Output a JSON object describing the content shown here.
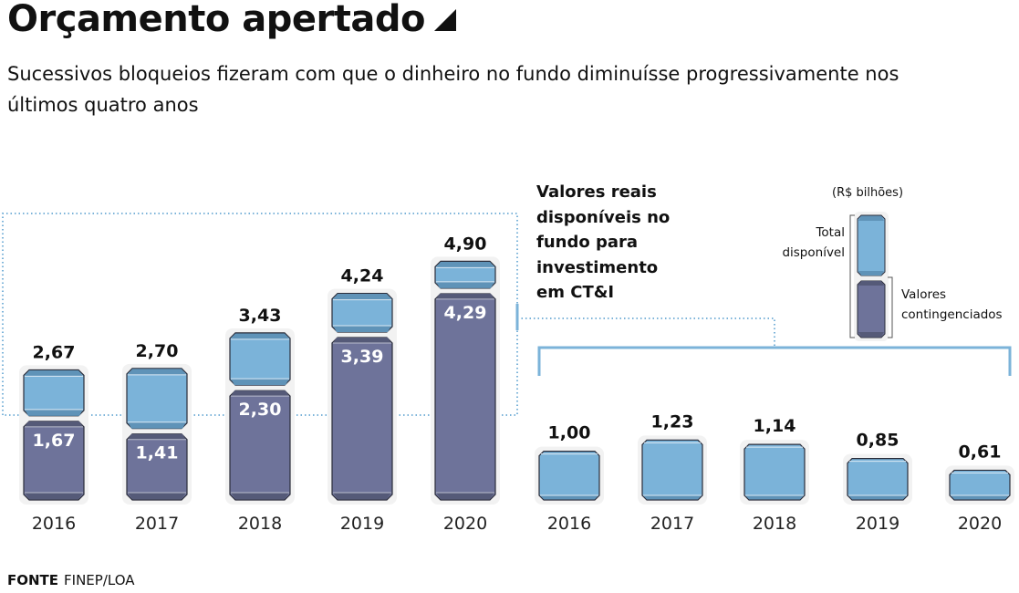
{
  "header": {
    "title": "Orçamento apertado",
    "subtitle": "Sucessivos bloqueios fizeram com que o dinheiro no fundo diminuísse progressivamente nos últimos quatro anos"
  },
  "annotation": "Valores reais disponíveis no fundo para investimento em CT&I",
  "legend": {
    "unit": "(R$ bilhões)",
    "total_label": "Total disponível",
    "contingency_label": "Valores contingenciados"
  },
  "source": {
    "label": "FONTE",
    "value": "FINEP/LOA"
  },
  "colors": {
    "available": "#7bb3d9",
    "contingency": "#6e739a",
    "annotation_line": "#7bb3d9"
  },
  "chart_data": [
    {
      "type": "bar",
      "stacked": true,
      "title": "Total disponível e valores contingenciados",
      "categories": [
        "2016",
        "2017",
        "2018",
        "2019",
        "2020"
      ],
      "series": [
        {
          "name": "Total disponível",
          "values": [
            2.67,
            2.7,
            3.43,
            4.24,
            4.9
          ],
          "labels": [
            "2,67",
            "2,70",
            "3,43",
            "4,24",
            "4,90"
          ]
        },
        {
          "name": "Valores contingenciados",
          "values": [
            1.67,
            1.41,
            2.3,
            3.39,
            4.29
          ],
          "labels": [
            "1,67",
            "1,41",
            "2,30",
            "3,39",
            "4,29"
          ]
        }
      ],
      "ylabel": "R$ bilhões",
      "ylim": [
        0,
        5
      ]
    },
    {
      "type": "bar",
      "title": "Valores reais disponíveis no fundo para investimento em CT&I",
      "categories": [
        "2016",
        "2017",
        "2018",
        "2019",
        "2020"
      ],
      "values": [
        1.0,
        1.23,
        1.14,
        0.85,
        0.61
      ],
      "labels": [
        "1,00",
        "1,23",
        "1,14",
        "0,85",
        "0,61"
      ],
      "ylabel": "R$ bilhões",
      "ylim": [
        0,
        5
      ]
    }
  ]
}
